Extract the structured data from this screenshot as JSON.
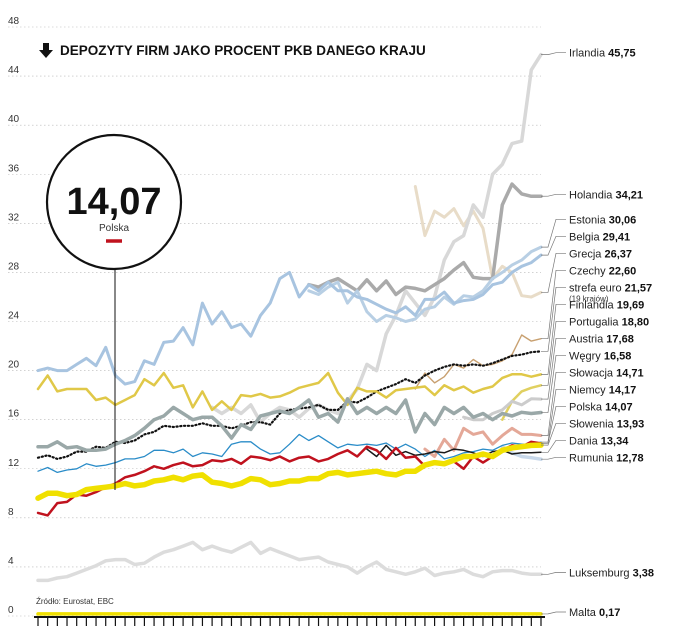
{
  "chart_data": {
    "type": "line",
    "title": "DEPOZYTY FIRM JAKO PROCENT PKB DANEGO KRAJU",
    "source": "Źródło: Eurostat, EBC",
    "highlight": {
      "value": "14,07",
      "label": "Polska",
      "color": "#c0121e"
    },
    "ylim": [
      0,
      48
    ],
    "yticks": [
      0,
      4,
      8,
      12,
      16,
      20,
      24,
      28,
      32,
      36,
      40,
      44,
      48
    ],
    "x_count": 53,
    "series": [
      {
        "name": "Luksemburg",
        "value": "3,38",
        "color": "#dcdcdc",
        "width": 3.5,
        "style": "solid",
        "values": [
          2.9,
          2.9,
          3.1,
          3.2,
          3.5,
          3.8,
          4.1,
          4.5,
          4.6,
          4.6,
          4.2,
          4.3,
          4.8,
          5.2,
          5.4,
          5.7,
          6.0,
          5.4,
          5.7,
          5.4,
          5.2,
          5.6,
          6.0,
          5.1,
          5.5,
          5.2,
          4.9,
          4.6,
          4.7,
          4.8,
          4.4,
          4.2,
          4.0,
          3.5,
          4.0,
          4.4,
          3.8,
          3.6,
          3.4,
          3.6,
          3.9,
          3.3,
          3.5,
          3.6,
          3.8,
          3.4,
          3.2,
          3.6,
          3.7,
          3.7,
          3.5,
          3.4,
          3.4
        ]
      },
      {
        "name": "Malta",
        "value": "0,17",
        "color": "#f0e000",
        "width": 3.5,
        "style": "solid",
        "values": [
          0.17,
          0.17,
          0.17,
          0.17,
          0.17,
          0.17,
          0.17,
          0.17,
          0.17,
          0.17,
          0.17,
          0.17,
          0.17,
          0.17,
          0.17,
          0.17,
          0.17,
          0.17,
          0.17,
          0.17,
          0.17,
          0.17,
          0.17,
          0.17,
          0.17,
          0.17,
          0.17,
          0.17,
          0.17,
          0.17,
          0.17,
          0.17,
          0.17,
          0.17,
          0.17,
          0.17,
          0.17,
          0.17,
          0.17,
          0.17,
          0.17,
          0.17,
          0.17,
          0.17,
          0.17,
          0.17,
          0.17,
          0.17,
          0.17,
          0.17,
          0.17,
          0.17,
          0.17
        ]
      },
      {
        "name": "Rumunia",
        "value": "12,78",
        "color": "#c8d8ea",
        "width": 3.5,
        "style": "solid",
        "values": [
          null,
          null,
          null,
          null,
          null,
          null,
          null,
          null,
          null,
          null,
          null,
          null,
          null,
          null,
          null,
          null,
          null,
          null,
          null,
          null,
          null,
          null,
          null,
          null,
          null,
          null,
          null,
          null,
          null,
          null,
          null,
          null,
          null,
          null,
          null,
          null,
          null,
          null,
          null,
          null,
          null,
          null,
          null,
          null,
          null,
          null,
          null,
          null,
          13.8,
          13.3,
          13.0,
          12.9,
          12.78
        ]
      },
      {
        "name": "Słowacja",
        "value": "14,71",
        "color": "#e4a898",
        "width": 3,
        "style": "solid",
        "values": [
          null,
          null,
          null,
          null,
          null,
          null,
          null,
          null,
          null,
          null,
          null,
          null,
          null,
          null,
          null,
          null,
          null,
          null,
          null,
          null,
          null,
          null,
          null,
          null,
          null,
          null,
          null,
          null,
          null,
          null,
          null,
          null,
          null,
          null,
          null,
          null,
          null,
          null,
          null,
          null,
          13.6,
          13.0,
          14.4,
          13.5,
          15.3,
          14.8,
          15.0,
          14.0,
          14.7,
          15.3,
          14.8,
          14.8,
          14.71
        ]
      },
      {
        "name": "Grecja",
        "value": "26,37",
        "color": "#e8dcc8",
        "width": 3,
        "style": "solid",
        "values": [
          null,
          null,
          null,
          null,
          null,
          null,
          null,
          null,
          null,
          null,
          null,
          null,
          null,
          null,
          null,
          null,
          null,
          null,
          null,
          null,
          null,
          null,
          null,
          null,
          null,
          null,
          null,
          null,
          null,
          null,
          null,
          null,
          null,
          null,
          null,
          null,
          null,
          null,
          null,
          35.0,
          31.0,
          33.0,
          32.5,
          33.2,
          31.8,
          33.0,
          31.6,
          27.5,
          28.5,
          28.0,
          26.1,
          26.0,
          26.37
        ]
      },
      {
        "name": "Irlandia",
        "value": "45,75",
        "color": "#d8d8d8",
        "width": 3.5,
        "style": "solid",
        "values": [
          null,
          null,
          null,
          null,
          null,
          null,
          null,
          null,
          null,
          null,
          null,
          null,
          null,
          null,
          null,
          null,
          null,
          null,
          17.0,
          16.5,
          17.0,
          16.5,
          17.2,
          15.8,
          16.5,
          17.0,
          16.8,
          16.2,
          16.9,
          17.2,
          16.8,
          16.5,
          17.5,
          18.5,
          20.5,
          20.0,
          23.0,
          24.5,
          26.5,
          25.5,
          24.5,
          26.0,
          29.0,
          30.5,
          31.0,
          33.5,
          32.5,
          36.0,
          36.8,
          38.5,
          38.7,
          44.5,
          45.75
        ]
      },
      {
        "name": "Holandia",
        "value": "34,21",
        "color": "#aaaaaa",
        "width": 3.5,
        "style": "solid",
        "values": [
          null,
          null,
          null,
          null,
          null,
          null,
          null,
          null,
          null,
          null,
          null,
          null,
          null,
          null,
          null,
          null,
          null,
          null,
          null,
          null,
          null,
          null,
          null,
          null,
          null,
          null,
          null,
          null,
          27.0,
          26.8,
          27.2,
          27.5,
          27.0,
          26.5,
          27.4,
          26.5,
          27.3,
          26.2,
          26.8,
          26.7,
          26.5,
          27.0,
          27.5,
          28.2,
          28.8,
          27.6,
          27.5,
          27.5,
          33.5,
          35.2,
          34.4,
          34.2,
          34.21
        ]
      },
      {
        "name": "Estonia",
        "value": "30,06",
        "color": "#b8cfe4",
        "width": 3,
        "style": "solid",
        "values": [
          null,
          null,
          null,
          null,
          null,
          null,
          null,
          null,
          null,
          null,
          null,
          null,
          null,
          null,
          null,
          null,
          null,
          null,
          null,
          null,
          null,
          null,
          null,
          null,
          null,
          null,
          null,
          null,
          26.5,
          26.2,
          26.8,
          27.2,
          25.5,
          26.5,
          24.8,
          24.0,
          24.5,
          24.3,
          24.0,
          24.2,
          25.0,
          25.2,
          26.0,
          25.4,
          26.1,
          26.0,
          26.5,
          27.5,
          28.0,
          28.6,
          29.0,
          29.7,
          30.06
        ]
      },
      {
        "name": "Belgia",
        "value": "29,41",
        "color": "#a8c4e0",
        "width": 3,
        "style": "solid",
        "values": [
          20.0,
          20.2,
          20.0,
          20.0,
          20.5,
          21.0,
          20.4,
          21.9,
          19.6,
          18.9,
          19.1,
          20.8,
          20.5,
          22.3,
          22.4,
          23.5,
          22.1,
          25.5,
          23.8,
          24.8,
          23.5,
          23.8,
          22.8,
          24.5,
          25.5,
          27.5,
          28.0,
          26.0,
          27.0,
          26.5,
          27.2,
          26.5,
          26.5,
          26.0,
          25.8,
          25.4,
          25.0,
          24.7,
          25.2,
          24.5,
          25.8,
          25.8,
          26.4,
          25.5,
          25.7,
          25.8,
          26.2,
          27.0,
          27.2,
          28.0,
          28.5,
          28.8,
          29.41
        ]
      },
      {
        "name": "Czechy",
        "value": "22,60",
        "color": "#c8a070",
        "width": 1.4,
        "style": "solid",
        "values": [
          null,
          null,
          null,
          null,
          null,
          null,
          null,
          null,
          null,
          null,
          null,
          null,
          null,
          null,
          null,
          null,
          null,
          null,
          null,
          null,
          null,
          null,
          null,
          null,
          null,
          null,
          null,
          null,
          null,
          null,
          null,
          null,
          null,
          null,
          null,
          null,
          null,
          null,
          null,
          18.5,
          19.8,
          19.0,
          19.5,
          20.5,
          20.2,
          20.9,
          20.4,
          20.5,
          20.8,
          21.3,
          22.9,
          22.4,
          22.6
        ]
      },
      {
        "name": "strefa euro",
        "value": "21,57",
        "sub": "(19 krajów)",
        "color": "#111111",
        "width": 1.8,
        "style": "dotted",
        "values": [
          12.9,
          13.1,
          12.8,
          13.0,
          13.4,
          13.4,
          13.8,
          13.7,
          14.2,
          14.1,
          14.3,
          14.8,
          15.0,
          15.5,
          15.4,
          15.5,
          15.5,
          15.7,
          15.5,
          15.5,
          15.3,
          15.5,
          15.8,
          15.8,
          15.6,
          16.5,
          16.8,
          16.9,
          17.0,
          17.2,
          16.8,
          16.8,
          17.5,
          17.4,
          17.8,
          18.3,
          18.6,
          18.9,
          19.3,
          19.0,
          19.6,
          20.0,
          20.3,
          20.5,
          20.4,
          20.5,
          20.4,
          20.6,
          20.9,
          21.2,
          21.3,
          21.5,
          21.57
        ]
      },
      {
        "name": "Finlandia",
        "value": "19,69",
        "color": "#e0c848",
        "width": 2.5,
        "style": "solid",
        "values": [
          18.5,
          19.6,
          18.3,
          18.5,
          18.5,
          18.5,
          17.6,
          17.8,
          17.2,
          17.6,
          18.0,
          19.3,
          18.8,
          19.8,
          18.6,
          18.8,
          17.0,
          18.3,
          16.8,
          17.5,
          16.8,
          18.0,
          17.9,
          18.1,
          17.8,
          17.9,
          18.2,
          18.6,
          18.8,
          19.0,
          19.8,
          18.2,
          17.2,
          18.6,
          18.3,
          18.3,
          17.8,
          18.4,
          18.5,
          18.6,
          18.7,
          18.0,
          18.8,
          18.4,
          18.7,
          18.2,
          18.5,
          18.7,
          19.4,
          19.7,
          19.7,
          19.5,
          19.69
        ]
      },
      {
        "name": "Portugalia",
        "value": "18,80",
        "color": "#e0d060",
        "width": 2.5,
        "style": "solid",
        "values": [
          null,
          null,
          null,
          null,
          null,
          null,
          null,
          null,
          null,
          null,
          null,
          null,
          null,
          null,
          null,
          null,
          null,
          null,
          null,
          null,
          null,
          null,
          null,
          null,
          null,
          null,
          null,
          null,
          null,
          null,
          null,
          null,
          null,
          null,
          null,
          null,
          null,
          null,
          null,
          null,
          null,
          null,
          null,
          null,
          null,
          null,
          null,
          null,
          16.0,
          17.5,
          18.3,
          18.6,
          18.8
        ]
      },
      {
        "name": "Austria",
        "value": "17,68",
        "color": "#cccccc",
        "width": 3,
        "style": "solid",
        "values": [
          null,
          null,
          null,
          null,
          null,
          null,
          null,
          null,
          null,
          null,
          null,
          null,
          null,
          null,
          null,
          null,
          null,
          null,
          null,
          null,
          null,
          null,
          null,
          null,
          null,
          null,
          null,
          null,
          null,
          null,
          null,
          null,
          null,
          null,
          null,
          null,
          null,
          null,
          null,
          null,
          null,
          null,
          null,
          null,
          16.2,
          16.0,
          16.0,
          16.5,
          16.8,
          17.5,
          17.2,
          17.7,
          17.68
        ]
      },
      {
        "name": "Węgry",
        "value": "16,58",
        "color": "#9aa8a8",
        "width": 3.5,
        "style": "solid",
        "values": [
          13.8,
          13.8,
          14.2,
          13.7,
          13.8,
          13.5,
          13.5,
          13.6,
          14.0,
          14.3,
          14.7,
          15.3,
          16.0,
          16.3,
          17.0,
          16.5,
          16.0,
          16.2,
          16.2,
          15.5,
          14.5,
          15.6,
          15.2,
          16.3,
          16.5,
          16.7,
          16.5,
          17.0,
          17.6,
          16.2,
          16.5,
          15.8,
          17.7,
          16.5,
          17.0,
          16.5,
          17.0,
          16.5,
          17.6,
          15.0,
          16.5,
          15.6,
          17.0,
          16.5,
          17.0,
          16.2,
          16.5,
          16.0,
          16.5,
          16.3,
          16.6,
          16.5,
          16.58
        ]
      },
      {
        "name": "Niemcy",
        "value": "14,17",
        "color": "#2a8cc8",
        "width": 1.3,
        "style": "solid",
        "values": [
          11.8,
          12.1,
          11.7,
          11.9,
          12.0,
          12.4,
          12.2,
          12.3,
          12.5,
          12.8,
          12.8,
          13.0,
          13.5,
          13.5,
          13.3,
          13.6,
          13.0,
          13.3,
          13.2,
          13.0,
          14.0,
          14.2,
          14.2,
          13.6,
          13.2,
          13.3,
          14.0,
          14.8,
          14.3,
          14.7,
          14.2,
          13.7,
          14.0,
          13.9,
          14.0,
          13.9,
          14.1,
          13.6,
          14.0,
          13.6,
          13.0,
          13.5,
          12.8,
          13.0,
          13.3,
          13.4,
          13.6,
          13.5,
          13.9,
          14.1,
          14.0,
          14.0,
          14.17
        ]
      },
      {
        "name": "Dania",
        "value": "13,34",
        "color": "#1a1a1a",
        "width": 1.5,
        "style": "solid",
        "values": [
          null,
          null,
          null,
          null,
          null,
          null,
          null,
          null,
          null,
          null,
          null,
          null,
          null,
          null,
          null,
          null,
          null,
          null,
          null,
          null,
          null,
          null,
          null,
          null,
          null,
          null,
          null,
          null,
          null,
          null,
          null,
          null,
          null,
          null,
          13.6,
          13.0,
          13.9,
          13.1,
          13.4,
          13.1,
          13.2,
          13.4,
          13.3,
          13.6,
          13.5,
          13.3,
          13.0,
          13.4,
          13.5,
          13.2,
          13.3,
          13.3,
          13.34
        ]
      },
      {
        "name": "Polska",
        "value": "14,07",
        "color": "#c0121e",
        "width": 2.5,
        "style": "solid",
        "values": [
          8.4,
          8.2,
          9.2,
          9.3,
          9.9,
          9.8,
          10.1,
          10.5,
          10.8,
          11.3,
          11.5,
          11.8,
          12.2,
          12.0,
          12.3,
          12.5,
          12.2,
          12.3,
          12.7,
          12.6,
          12.8,
          12.4,
          13.0,
          12.9,
          12.7,
          13.0,
          12.6,
          12.9,
          13.0,
          12.6,
          12.8,
          13.2,
          13.5,
          13.0,
          13.8,
          13.5,
          12.8,
          13.7,
          12.9,
          13.0,
          12.2,
          12.5,
          12.5,
          12.6,
          12.0,
          13.0,
          12.5,
          13.0,
          13.5,
          13.9,
          13.8,
          14.2,
          14.07
        ]
      },
      {
        "name": "Słowenia",
        "value": "13,93",
        "color": "#f0e000",
        "width": 5.5,
        "style": "solid",
        "values": [
          9.6,
          10.0,
          10.0,
          9.8,
          9.9,
          10.3,
          10.4,
          10.5,
          10.6,
          10.8,
          10.6,
          10.7,
          11.0,
          11.1,
          11.3,
          11.1,
          11.4,
          11.5,
          10.9,
          10.8,
          10.6,
          10.8,
          11.2,
          11.1,
          10.7,
          10.8,
          11.0,
          11.0,
          11.2,
          11.2,
          11.6,
          11.7,
          11.5,
          11.6,
          11.7,
          11.8,
          11.6,
          11.5,
          11.8,
          11.8,
          12.3,
          12.5,
          12.4,
          12.7,
          13.0,
          13.0,
          13.2,
          13.0,
          13.5,
          13.7,
          13.8,
          13.9,
          13.93
        ]
      }
    ]
  }
}
